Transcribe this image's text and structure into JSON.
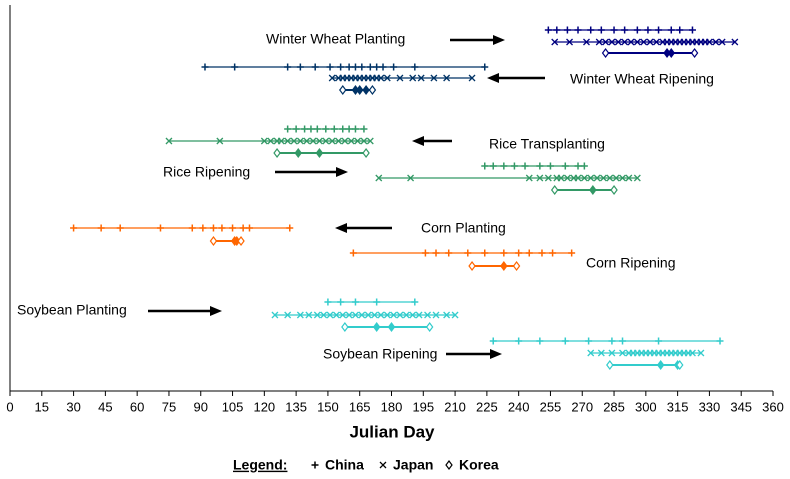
{
  "chart_data": {
    "type": "range-dot",
    "xlabel": "Julian Day",
    "xlim": [
      0,
      360
    ],
    "xticks": [
      0,
      15,
      30,
      45,
      60,
      75,
      90,
      105,
      120,
      135,
      150,
      165,
      180,
      195,
      210,
      225,
      240,
      255,
      270,
      285,
      300,
      315,
      330,
      345,
      360
    ],
    "legend_title": "Legend:",
    "groups": [
      {
        "label": "Winter Wheat Planting",
        "color": "#000080",
        "series": [
          {
            "name": "China",
            "values": [
              254,
              258,
              263,
              268,
              274,
              279,
              285,
              290,
              296,
              301,
              306,
              312,
              316,
              322
            ]
          },
          {
            "name": "Japan",
            "values": [
              257,
              264,
              272,
              278,
              281,
              284,
              287,
              290,
              293,
              296,
              299,
              302,
              305,
              308,
              310,
              312,
              314,
              316,
              318,
              320,
              322,
              324,
              326,
              328,
              330,
              333,
              336,
              342
            ]
          },
          {
            "name": "Korea",
            "values": [
              281,
              310,
              312,
              323
            ]
          }
        ]
      },
      {
        "label": "Winter Wheat Ripening",
        "color": "#003366",
        "series": [
          {
            "name": "China",
            "values": [
              92,
              106,
              131,
              137,
              144,
              151,
              156,
              160,
              163,
              166,
              170,
              173,
              176,
              181,
              191,
              224
            ]
          },
          {
            "name": "Japan",
            "values": [
              152,
              155,
              157,
              159,
              161,
              163,
              165,
              167,
              169,
              171,
              173,
              175,
              178,
              184,
              190,
              194,
              200,
              206,
              218
            ]
          },
          {
            "name": "Korea",
            "values": [
              157,
              163,
              165,
              168,
              171
            ]
          }
        ]
      },
      {
        "label": "Rice Transplanting",
        "color": "#339966",
        "series": [
          {
            "name": "China",
            "values": [
              131,
              135,
              139,
              142,
              145,
              149,
              153,
              157,
              160,
              163,
              167
            ]
          },
          {
            "name": "Japan",
            "values": [
              75,
              99,
              120,
              123,
              126,
              128,
              131,
              134,
              137,
              140,
              143,
              146,
              149,
              152,
              155,
              158,
              161,
              164,
              167,
              170
            ]
          },
          {
            "name": "Korea",
            "values": [
              126,
              136,
              146,
              168
            ]
          }
        ]
      },
      {
        "label": "Rice Ripening",
        "color": "#339966",
        "series": [
          {
            "name": "China",
            "values": [
              224,
              228,
              233,
              238,
              243,
              250,
              255,
              262,
              268,
              271
            ]
          },
          {
            "name": "Japan",
            "values": [
              174,
              189,
              245,
              250,
              254,
              258,
              260,
              263,
              266,
              268,
              271,
              274,
              277,
              280,
              283,
              286,
              289,
              292,
              296
            ]
          },
          {
            "name": "Korea",
            "values": [
              257,
              275,
              285
            ]
          }
        ]
      },
      {
        "label": "Corn Planting",
        "color": "#ff6600",
        "series": [
          {
            "name": "China",
            "values": [
              30,
              43,
              52,
              71,
              86,
              91,
              96,
              100,
              105,
              110,
              113,
              132
            ]
          },
          {
            "name": "Korea",
            "values": [
              96,
              106,
              107,
              109
            ]
          }
        ]
      },
      {
        "label": "Corn Ripening",
        "color": "#ff6600",
        "series": [
          {
            "name": "China",
            "values": [
              162,
              196,
              201,
              207,
              216,
              224,
              233,
              240,
              245,
              251,
              256,
              265
            ]
          },
          {
            "name": "Korea",
            "values": [
              218,
              233,
              239
            ]
          }
        ]
      },
      {
        "label": "Soybean Planting",
        "color": "#33cccc",
        "series": [
          {
            "name": "China",
            "values": [
              150,
              156,
              163,
              173,
              191
            ]
          },
          {
            "name": "Japan",
            "values": [
              125,
              131,
              137,
              141,
              145,
              148,
              151,
              154,
              157,
              160,
              163,
              166,
              169,
              172,
              175,
              178,
              181,
              184,
              187,
              190,
              193,
              197,
              201,
              206,
              210
            ]
          },
          {
            "name": "Korea",
            "values": [
              158,
              173,
              180,
              198
            ]
          }
        ]
      },
      {
        "label": "Soybean Ripening",
        "color": "#33cccc",
        "series": [
          {
            "name": "China",
            "values": [
              228,
              240,
              250,
              262,
              273,
              284,
              289,
              306,
              335
            ]
          },
          {
            "name": "Japan",
            "values": [
              274,
              279,
              284,
              289,
              292,
              294,
              296,
              298,
              300,
              302,
              304,
              306,
              308,
              310,
              312,
              314,
              316,
              318,
              320,
              322,
              326
            ]
          },
          {
            "name": "Korea",
            "values": [
              283,
              307,
              315,
              316
            ]
          }
        ]
      }
    ]
  }
}
